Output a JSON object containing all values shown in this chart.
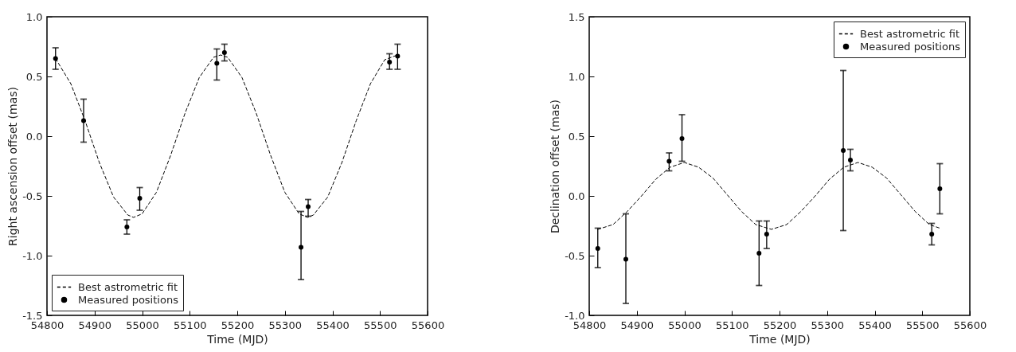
{
  "chart_data": [
    {
      "type": "scatter",
      "xlabel": "Time (MJD)",
      "ylabel": "Right ascension offset (mas)",
      "xlim": [
        54800,
        55600
      ],
      "xticks": [
        54800,
        54900,
        55000,
        55100,
        55200,
        55300,
        55400,
        55500,
        55600
      ],
      "ylim": [
        -1.5,
        1.0
      ],
      "yticks": [
        -1.5,
        {
          "value": -1,
          "label": "-1.0"
        },
        -0.5,
        {
          "value": 0,
          "label": "0.0"
        },
        0.5,
        {
          "value": 1,
          "label": "1.0"
        }
      ],
      "legend": "bottom left",
      "series": [
        {
          "name": "Best astrometric fit",
          "type": "line",
          "color": "#000000",
          "line_style": "dashed",
          "x": [
            54818,
            54850,
            54880,
            54910,
            54940,
            54970,
            54982,
            55000,
            55030,
            55060,
            55090,
            55120,
            55150,
            55165,
            55180,
            55210,
            55240,
            55270,
            55300,
            55330,
            55348,
            55360,
            55390,
            55420,
            55450,
            55480,
            55510,
            55537
          ],
          "values": [
            0.65,
            0.44,
            0.13,
            -0.22,
            -0.51,
            -0.66,
            -0.68,
            -0.65,
            -0.47,
            -0.16,
            0.19,
            0.49,
            0.66,
            0.68,
            0.66,
            0.49,
            0.19,
            -0.16,
            -0.47,
            -0.65,
            -0.68,
            -0.66,
            -0.51,
            -0.22,
            0.13,
            0.44,
            0.64,
            0.68
          ]
        },
        {
          "name": "Measured positions",
          "type": "scatter",
          "marker": "circle",
          "color": "#000000",
          "x": [
            54818,
            54877,
            54968,
            54995,
            55157,
            55173,
            55334,
            55349,
            55520,
            55537
          ],
          "values": [
            0.65,
            0.13,
            -0.76,
            -0.52,
            0.61,
            0.7,
            -0.93,
            -0.59,
            0.62,
            0.67
          ],
          "errors": [
            [
              0.56,
              0.74
            ],
            [
              -0.05,
              0.31
            ],
            [
              -0.82,
              -0.7
            ],
            [
              -0.62,
              -0.43
            ],
            [
              0.47,
              0.73
            ],
            [
              0.63,
              0.77
            ],
            [
              -1.2,
              -0.63
            ],
            [
              -0.67,
              -0.53
            ],
            [
              0.56,
              0.69
            ],
            [
              0.56,
              0.77
            ]
          ]
        }
      ]
    },
    {
      "type": "scatter",
      "xlabel": "Time (MJD)",
      "ylabel": "Declination offset (mas)",
      "xlim": [
        54800,
        55600
      ],
      "xticks": [
        54800,
        54900,
        55000,
        55100,
        55200,
        55300,
        55400,
        55500,
        55600
      ],
      "ylim": [
        -1.0,
        1.5
      ],
      "yticks": [
        {
          "value": -1,
          "label": "-1.0"
        },
        -0.5,
        {
          "value": 0,
          "label": "0.0"
        },
        0.5,
        {
          "value": 1,
          "label": "1.0"
        },
        1.5
      ],
      "legend": "top right",
      "series": [
        {
          "name": "Best astrometric fit",
          "type": "line",
          "color": "#000000",
          "line_style": "dashed",
          "x": [
            54818,
            54850,
            54880,
            54910,
            54940,
            54970,
            55000,
            55030,
            55060,
            55090,
            55120,
            55150,
            55183,
            55215,
            55245,
            55275,
            55305,
            55335,
            55365,
            55395,
            55425,
            55455,
            55485,
            55515,
            55537
          ],
          "values": [
            -0.28,
            -0.24,
            -0.13,
            0.0,
            0.14,
            0.24,
            0.28,
            0.24,
            0.15,
            0.01,
            -0.13,
            -0.24,
            -0.28,
            -0.24,
            -0.13,
            0.0,
            0.14,
            0.24,
            0.28,
            0.24,
            0.15,
            0.01,
            -0.13,
            -0.24,
            -0.27
          ]
        },
        {
          "name": "Measured positions",
          "type": "scatter",
          "marker": "circle",
          "color": "#000000",
          "x": [
            54818,
            54877,
            54968,
            54995,
            55157,
            55173,
            55334,
            55349,
            55520,
            55537
          ],
          "values": [
            -0.44,
            -0.53,
            0.29,
            0.48,
            -0.48,
            -0.32,
            0.38,
            0.3,
            -0.32,
            0.06
          ],
          "errors": [
            [
              -0.6,
              -0.27
            ],
            [
              -0.9,
              -0.15
            ],
            [
              0.21,
              0.36
            ],
            [
              0.29,
              0.68
            ],
            [
              -0.75,
              -0.21
            ],
            [
              -0.44,
              -0.21
            ],
            [
              -0.29,
              1.05
            ],
            [
              0.21,
              0.39
            ],
            [
              -0.41,
              -0.23
            ],
            [
              -0.15,
              0.27
            ]
          ]
        }
      ]
    }
  ]
}
